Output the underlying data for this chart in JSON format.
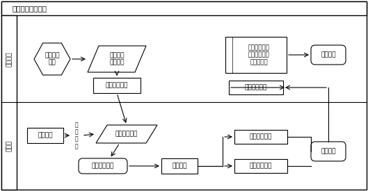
{
  "title": "输电巡线业务流程",
  "row_label_server": "服务器端",
  "row_label_client": "客户端",
  "label_make_plan": "制定巡检\n计划",
  "label_gen_task": "生成巡检\n任务数据",
  "label_download": "下载到客户端",
  "label_patrol_result": "巡检结果数据\n（到位情况、\n缺陷代码）",
  "label_stat": "统计分析",
  "label_upload": "上传到服务器",
  "label_user_login": "用户登录",
  "label_auth": "验\n证\n通\n过",
  "label_user_patrol": "用户巡检任务",
  "label_show_task": "显示巡检任务",
  "label_check_equip": "检查设备",
  "label_record_time": "记录时间位置",
  "label_record_defect": "记录缺陷情况",
  "label_record_data": "记录数据"
}
